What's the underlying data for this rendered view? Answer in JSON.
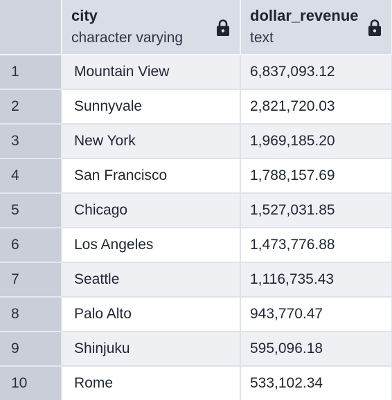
{
  "columns": [
    {
      "name": "city",
      "type": "character varying",
      "icon": "lock-icon"
    },
    {
      "name": "dollar_revenue",
      "type": "text",
      "icon": "lock-icon"
    }
  ],
  "rows": [
    {
      "num": "1",
      "city": "Mountain View",
      "dollar_revenue": "6,837,093.12"
    },
    {
      "num": "2",
      "city": "Sunnyvale",
      "dollar_revenue": "2,821,720.03"
    },
    {
      "num": "3",
      "city": "New York",
      "dollar_revenue": "1,969,185.20"
    },
    {
      "num": "4",
      "city": "San Francisco",
      "dollar_revenue": "1,788,157.69"
    },
    {
      "num": "5",
      "city": "Chicago",
      "dollar_revenue": "1,527,031.85"
    },
    {
      "num": "6",
      "city": "Los Angeles",
      "dollar_revenue": "1,473,776.88"
    },
    {
      "num": "7",
      "city": "Seattle",
      "dollar_revenue": "1,116,735.43"
    },
    {
      "num": "8",
      "city": "Palo Alto",
      "dollar_revenue": "943,770.47"
    },
    {
      "num": "9",
      "city": "Shinjuku",
      "dollar_revenue": "595,096.18"
    },
    {
      "num": "10",
      "city": "Rome",
      "dollar_revenue": "533,102.34"
    }
  ],
  "colors": {
    "header_bg": "#d9dde6",
    "rownum_bg": "#c9ced9",
    "stripe_bg": "#eef0f4"
  }
}
